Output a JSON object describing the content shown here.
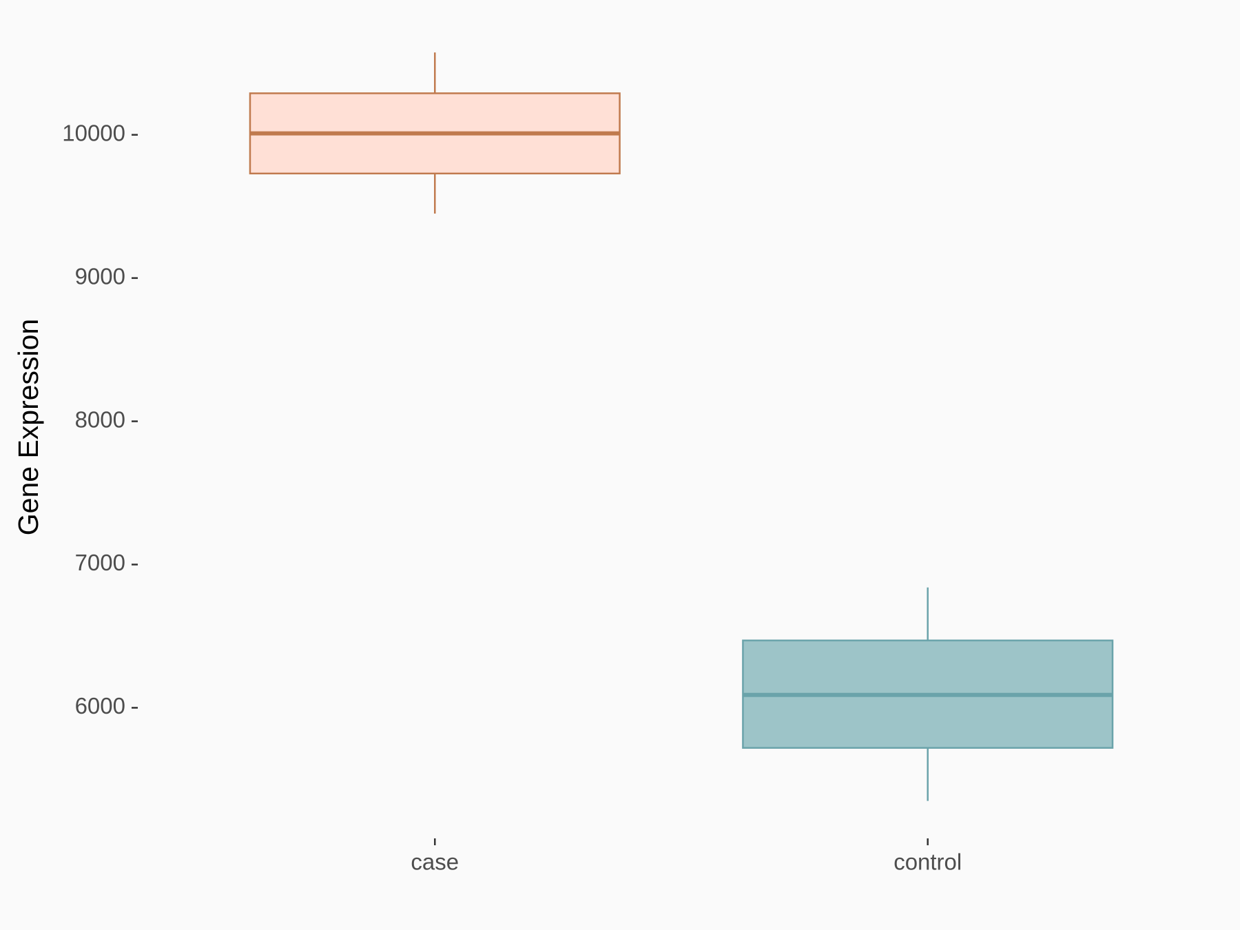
{
  "chart_data": {
    "type": "box",
    "y_label": "Gene Expression",
    "categories": [
      "case",
      "control"
    ],
    "values": [
      {
        "min": 9450,
        "q1": 9730,
        "median": 10010,
        "q3": 10290,
        "max": 10575
      },
      {
        "min": 5350,
        "q1": 5720,
        "median": 6090,
        "q3": 6470,
        "max": 6840
      }
    ],
    "fill_colors": [
      "#ffe0d6",
      "#9dc4c8"
    ],
    "edge_colors": [
      "#c07a4e",
      "#6aa3aa"
    ],
    "ylim": [
      5170,
      10720
    ],
    "yticks": [
      6000,
      7000,
      8000,
      9000,
      10000
    ],
    "grid": false
  }
}
